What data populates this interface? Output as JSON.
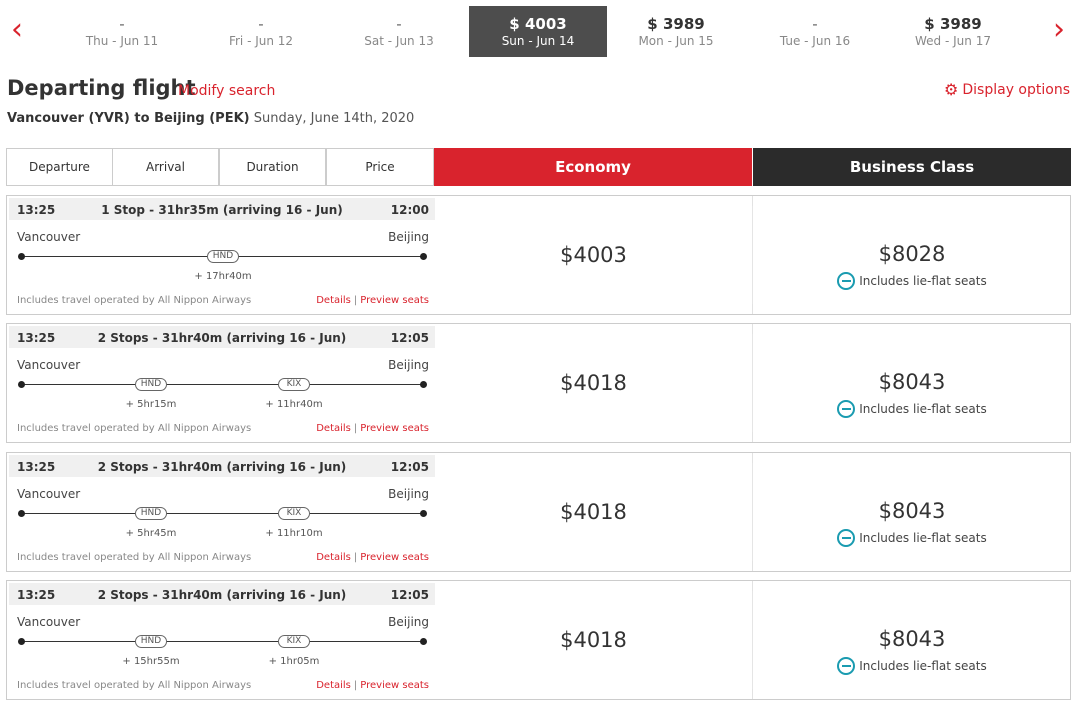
{
  "date_bar": {
    "dates": [
      {
        "price": "-",
        "label": "Thu - Jun 11",
        "selected": false
      },
      {
        "price": "-",
        "label": "Fri - Jun 12",
        "selected": false
      },
      {
        "price": "-",
        "label": "Sat - Jun 13",
        "selected": false
      },
      {
        "price": "$ 4003",
        "label": "Sun - Jun 14",
        "selected": true
      },
      {
        "price": "$ 3989",
        "label": "Mon - Jun 15",
        "selected": false
      },
      {
        "price": "-",
        "label": "Tue - Jun 16",
        "selected": false
      },
      {
        "price": "$ 3989",
        "label": "Wed - Jun 17",
        "selected": false
      }
    ],
    "prev_icon": "chevron-left-icon",
    "next_icon": "chevron-right-icon"
  },
  "header": {
    "title": "Departing flight",
    "modify_label": "Modify search",
    "display_options_label": "Display options",
    "route_bold": "Vancouver (YVR) to Beijing (PEK)",
    "route_date": "Sunday, June 14th, 2020"
  },
  "columns": {
    "departure": "Departure",
    "arrival": "Arrival",
    "duration": "Duration",
    "price": "Price",
    "economy": "Economy",
    "business": "Business Class"
  },
  "colors": {
    "accent": "#d9232d",
    "business_header": "#2b2b2b",
    "selected_date": "#4d4d4d",
    "seat_icon": "#1a9bb0"
  },
  "flights": [
    {
      "departure_time": "13:25",
      "summary": "1 Stop - 31hr35m (arriving 16 - Jun)",
      "arrival_time": "12:00",
      "from": "Vancouver",
      "to": "Beijing",
      "stops": [
        {
          "code": "HND",
          "layover": "+ 17hr40m"
        }
      ],
      "operated": "Includes travel operated by All Nippon Airways",
      "details_label": "Details",
      "preview_label": "Preview seats",
      "economy_price": "$4003",
      "business_price": "$8028",
      "business_note": "Includes lie-flat seats"
    },
    {
      "departure_time": "13:25",
      "summary": "2 Stops - 31hr40m (arriving 16 - Jun)",
      "arrival_time": "12:05",
      "from": "Vancouver",
      "to": "Beijing",
      "stops": [
        {
          "code": "HND",
          "layover": "+ 5hr15m"
        },
        {
          "code": "KIX",
          "layover": "+ 11hr40m"
        }
      ],
      "operated": "Includes travel operated by All Nippon Airways",
      "details_label": "Details",
      "preview_label": "Preview seats",
      "economy_price": "$4018",
      "business_price": "$8043",
      "business_note": "Includes lie-flat seats"
    },
    {
      "departure_time": "13:25",
      "summary": "2 Stops - 31hr40m (arriving 16 - Jun)",
      "arrival_time": "12:05",
      "from": "Vancouver",
      "to": "Beijing",
      "stops": [
        {
          "code": "HND",
          "layover": "+ 5hr45m"
        },
        {
          "code": "KIX",
          "layover": "+ 11hr10m"
        }
      ],
      "operated": "Includes travel operated by All Nippon Airways",
      "details_label": "Details",
      "preview_label": "Preview seats",
      "economy_price": "$4018",
      "business_price": "$8043",
      "business_note": "Includes lie-flat seats"
    },
    {
      "departure_time": "13:25",
      "summary": "2 Stops - 31hr40m (arriving 16 - Jun)",
      "arrival_time": "12:05",
      "from": "Vancouver",
      "to": "Beijing",
      "stops": [
        {
          "code": "HND",
          "layover": "+ 15hr55m"
        },
        {
          "code": "KIX",
          "layover": "+ 1hr05m"
        }
      ],
      "operated": "Includes travel operated by All Nippon Airways",
      "details_label": "Details",
      "preview_label": "Preview seats",
      "economy_price": "$4018",
      "business_price": "$8043",
      "business_note": "Includes lie-flat seats"
    }
  ]
}
